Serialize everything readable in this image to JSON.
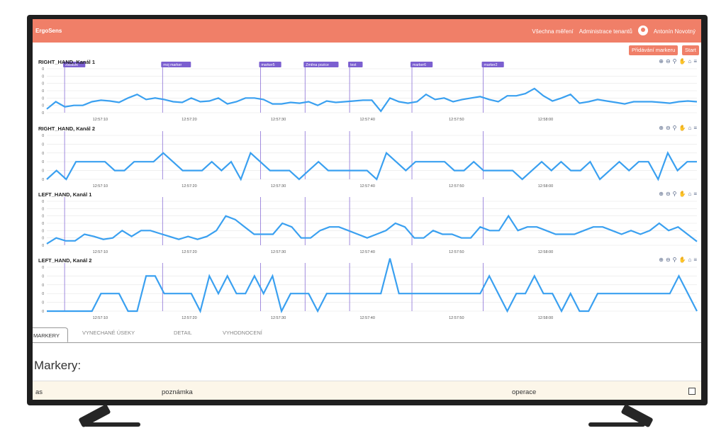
{
  "app": {
    "brand": "ErgoSens",
    "nav": {
      "measurements": "Všechna měření",
      "tenants": "Administrace tenantů",
      "user": "Antonín Novotný"
    },
    "buttons": {
      "add_markers": "Přidávání markeru",
      "start": "Start"
    }
  },
  "toolbar_icons": [
    "zoom-in-icon",
    "zoom-out-icon",
    "magnify-icon",
    "pan-hand-icon",
    "home-icon",
    "menu-icon"
  ],
  "markers": [
    {
      "label": "zacatek",
      "time": "12:57:06"
    },
    {
      "label": "moj marker",
      "time": "12:57:17"
    },
    {
      "label": "marker5",
      "time": "12:57:28"
    },
    {
      "label": "Změna pozice",
      "time": "12:57:33"
    },
    {
      "label": "test",
      "time": "12:57:38"
    },
    {
      "label": "marker6",
      "time": "12:57:45"
    },
    {
      "label": "marker2",
      "time": "12:57:53"
    }
  ],
  "x_ticks": [
    "12:57:10",
    "12:57:20",
    "12:57:30",
    "12:57:40",
    "12:57:50",
    "12:58:00"
  ],
  "chart_data": [
    {
      "type": "line",
      "title": "RIGHT_HAND, Kanál 1",
      "y_tick_labels": [
        "0",
        "0",
        "0",
        "0",
        "0",
        "0",
        "0"
      ],
      "ylim": [
        0,
        6
      ],
      "colors": [
        "#3aa0f0"
      ],
      "series": [
        {
          "values": [
            0.5,
            1.5,
            0.8,
            1.0,
            1.0,
            1.5,
            1.7,
            1.6,
            1.4,
            2.0,
            2.5,
            1.8,
            2.0,
            1.8,
            1.5,
            1.4,
            2.0,
            1.5,
            1.6,
            2.0,
            1.2,
            1.5,
            2.0,
            2.0,
            1.8,
            1.2,
            1.2,
            1.4,
            1.3,
            1.5,
            1.0,
            1.6,
            1.4,
            1.5,
            1.6,
            1.7,
            1.7,
            0.2,
            2.0,
            1.5,
            1.3,
            1.5,
            2.5,
            1.8,
            2.0,
            1.5,
            1.8,
            2.0,
            2.2,
            1.8,
            1.5,
            2.3,
            2.3,
            2.6,
            3.3,
            2.3,
            1.6,
            2.0,
            2.5,
            1.3,
            1.5,
            1.8,
            1.6,
            1.4,
            1.2,
            1.5,
            1.5,
            1.5,
            1.4,
            1.3,
            1.5,
            1.6,
            1.5
          ]
        }
      ]
    },
    {
      "type": "line",
      "title": "RIGHT_HAND, Kanál 2",
      "y_tick_labels": [
        "0",
        "0",
        "0",
        "0",
        "0",
        "0"
      ],
      "ylim": [
        0,
        5
      ],
      "colors": [
        "#3aa0f0"
      ],
      "series": [
        {
          "values": [
            0,
            1,
            0,
            2,
            2,
            2,
            2,
            1,
            1,
            2,
            2,
            2,
            3,
            2,
            1,
            1,
            1,
            2,
            1,
            2,
            0,
            3,
            2,
            1,
            1,
            1,
            0,
            1,
            2,
            1,
            1,
            1,
            1,
            1,
            0,
            3,
            2,
            1,
            2,
            2,
            2,
            2,
            1,
            1,
            2,
            1,
            1,
            1,
            1,
            0,
            1,
            2,
            1,
            2,
            1,
            1,
            2,
            0,
            1,
            2,
            1,
            2,
            2,
            0,
            3,
            1,
            2,
            2
          ]
        }
      ]
    },
    {
      "type": "line",
      "title": "LEFT_HAND, Kanál 1",
      "y_tick_labels": [
        "0",
        "0",
        "0",
        "0",
        "0",
        "0",
        "0"
      ],
      "ylim": [
        0,
        6
      ],
      "colors": [
        "#3aa0f0"
      ],
      "series": [
        {
          "values": [
            0.2,
            1.0,
            0.6,
            0.6,
            1.5,
            1.2,
            0.8,
            1.0,
            2.0,
            1.2,
            2.0,
            2.0,
            1.6,
            1.2,
            0.8,
            1.2,
            0.8,
            1.2,
            2.0,
            4.0,
            3.5,
            2.5,
            1.5,
            1.5,
            1.5,
            3.0,
            2.5,
            1.0,
            1.0,
            2.0,
            2.5,
            2.5,
            2.0,
            1.5,
            1.0,
            1.5,
            2.0,
            3.0,
            2.5,
            1.0,
            1.0,
            2.0,
            1.5,
            1.5,
            1.0,
            1.0,
            2.5,
            2.0,
            2.0,
            4.0,
            2.0,
            2.5,
            2.5,
            2.0,
            1.5,
            1.5,
            1.5,
            2.0,
            2.5,
            2.5,
            2.0,
            1.5,
            2.0,
            1.5,
            2.0,
            3.0,
            2.0,
            2.5,
            1.5,
            0.5
          ]
        }
      ]
    },
    {
      "type": "line",
      "title": "LEFT_HAND, Kanál 2",
      "y_tick_labels": [
        "0",
        "0",
        "0",
        "0",
        "0",
        "0"
      ],
      "ylim": [
        0,
        5
      ],
      "colors": [
        "#3aa0f0"
      ],
      "series": [
        {
          "values": [
            0,
            0,
            0,
            0,
            0,
            0,
            2,
            2,
            2,
            0,
            0,
            4,
            4,
            2,
            2,
            2,
            2,
            0,
            4,
            2,
            4,
            2,
            2,
            4,
            2,
            4,
            0,
            2,
            2,
            2,
            0,
            2,
            2,
            2,
            2,
            2,
            2,
            2,
            6,
            2,
            2,
            2,
            2,
            2,
            2,
            2,
            2,
            2,
            2,
            4,
            2,
            0,
            2,
            2,
            4,
            2,
            2,
            0,
            2,
            0,
            0,
            2,
            2,
            2,
            2,
            2,
            2,
            2,
            2,
            2,
            4,
            2,
            0
          ]
        }
      ]
    }
  ],
  "tabs": [
    "MARKERY",
    "VYNECHANÉ ÚSEKY",
    "DETAIL",
    "VYHODNOCENÍ"
  ],
  "section_title": "Markery:",
  "table_columns": [
    "as",
    "poznámka",
    "operace"
  ]
}
